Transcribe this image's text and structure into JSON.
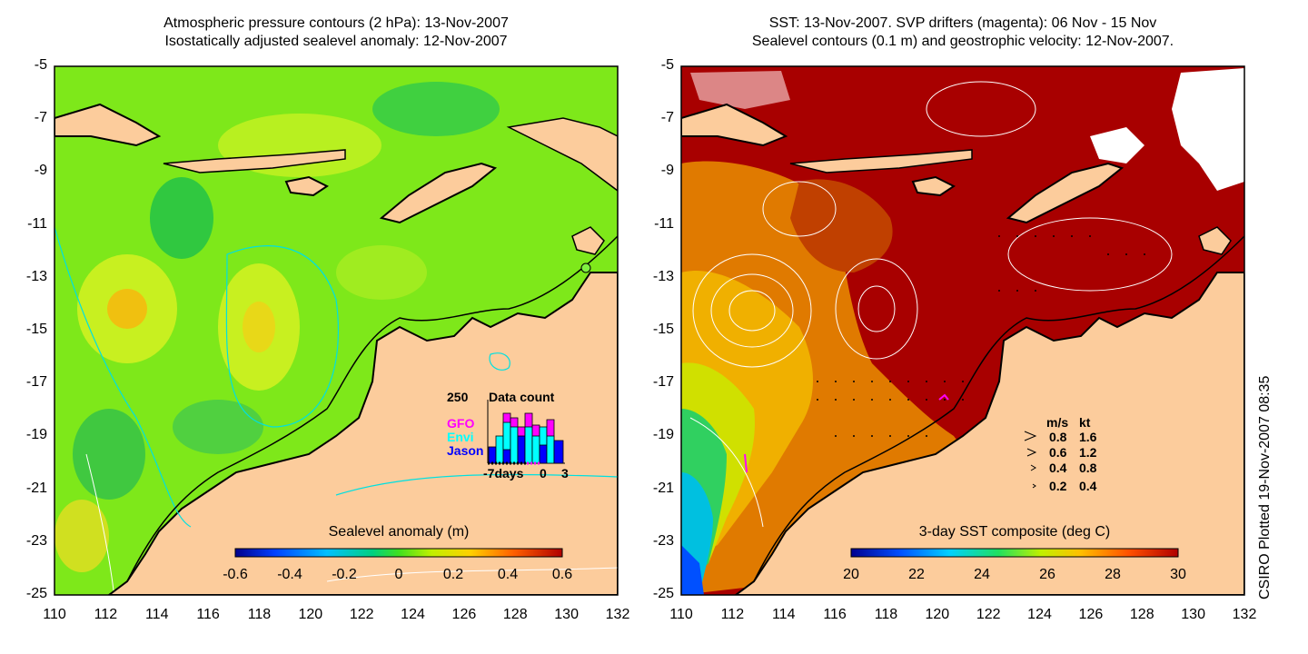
{
  "left_panel": {
    "title_line1": "Atmospheric pressure contours (2 hPa): 13-Nov-2007",
    "title_line2": "Isostatically adjusted sealevel anomaly: 12-Nov-2007",
    "y_ticks": [
      "-5",
      "-7",
      "-9",
      "-11",
      "-13",
      "-15",
      "-17",
      "-19",
      "-21",
      "-23",
      "-25"
    ],
    "x_ticks": [
      "110",
      "112",
      "114",
      "116",
      "118",
      "120",
      "122",
      "124",
      "126",
      "128",
      "130",
      "132"
    ],
    "colorbar": {
      "label": "Sealevel anomaly (m)",
      "ticks": [
        "-0.6",
        "-0.4",
        "-0.2",
        "0",
        "0.2",
        "0.4",
        "0.6"
      ]
    },
    "data_count": {
      "title": "Data count",
      "ymax_label": "250",
      "x_labels": [
        "-7days",
        "0",
        "3"
      ],
      "legend": [
        {
          "name": "GFO",
          "color": "#ff00ff"
        },
        {
          "name": "Envi",
          "color": "#00ffff"
        },
        {
          "name": "Jason",
          "color": "#0000ff"
        }
      ]
    }
  },
  "right_panel": {
    "title_line1": "SST: 13-Nov-2007. SVP drifters (magenta): 06 Nov - 15 Nov",
    "title_line2": "Sealevel contours (0.1 m) and geostrophic velocity: 12-Nov-2007.",
    "y_ticks": [
      "-5",
      "-7",
      "-9",
      "-11",
      "-13",
      "-15",
      "-17",
      "-19",
      "-21",
      "-23",
      "-25"
    ],
    "x_ticks": [
      "110",
      "112",
      "114",
      "116",
      "118",
      "120",
      "122",
      "124",
      "126",
      "128",
      "130",
      "132"
    ],
    "colorbar": {
      "label": "3-day SST composite (deg C)",
      "ticks": [
        "20",
        "22",
        "24",
        "26",
        "28",
        "30"
      ]
    },
    "velocity_legend": {
      "header_ms": "m/s",
      "header_kt": "kt",
      "rows": [
        {
          "ms": "0.8",
          "kt": "1.6"
        },
        {
          "ms": "0.6",
          "kt": "1.2"
        },
        {
          "ms": "0.4",
          "kt": "0.8"
        },
        {
          "ms": "0.2",
          "kt": "0.4"
        }
      ]
    }
  },
  "credit": "CSIRO Plotted 19-Nov-2007 08:35",
  "colors": {
    "land": "#fccc9c",
    "sla_green": "#7ee81a",
    "sst_red": "#a80000",
    "contour_cyan": "#00e0e0"
  }
}
